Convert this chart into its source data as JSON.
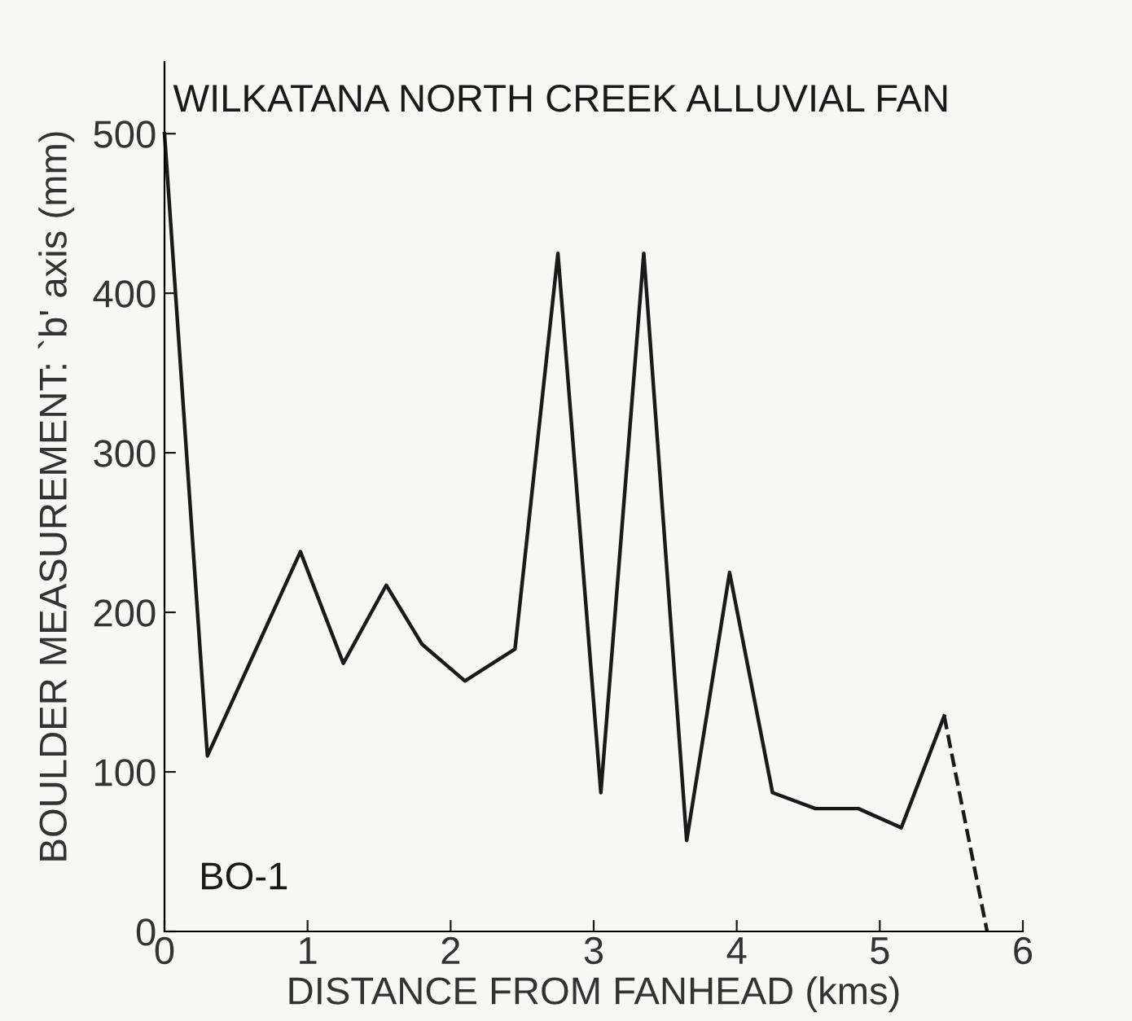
{
  "chart_data": {
    "type": "line",
    "title": "WILKATANA NORTH CREEK ALLUVIAL FAN",
    "xlabel": "DISTANCE FROM FANHEAD (kms)",
    "ylabel": "BOULDER MEASUREMENT: `b' axis (mm)",
    "series": [
      {
        "color": "#1a1a1a",
        "line_style": "solid",
        "x": [
          0,
          0.3,
          0.95,
          1.25,
          1.55,
          1.8,
          2.1,
          2.45,
          2.75,
          3.05,
          3.35,
          3.65,
          3.95,
          4.25,
          4.55,
          4.85,
          5.15,
          5.45
        ],
        "values": [
          500,
          110,
          238,
          168,
          217,
          180,
          157,
          177,
          425,
          87,
          425,
          57,
          225,
          87,
          77,
          77,
          65,
          135
        ]
      },
      {
        "color": "#1a1a1a",
        "line_style": "dashed",
        "x": [
          5.45,
          5.75
        ],
        "values": [
          135,
          0
        ]
      }
    ],
    "annotations": [
      {
        "text": "BO-1"
      }
    ],
    "xlim": [
      0,
      6
    ],
    "xticks": [
      0,
      1,
      2,
      3,
      4,
      5,
      6
    ],
    "ylim": [
      0,
      545
    ],
    "yticks": [
      0,
      100,
      200,
      300,
      400,
      500
    ],
    "grid": false,
    "legend": false,
    "marker": "none"
  }
}
